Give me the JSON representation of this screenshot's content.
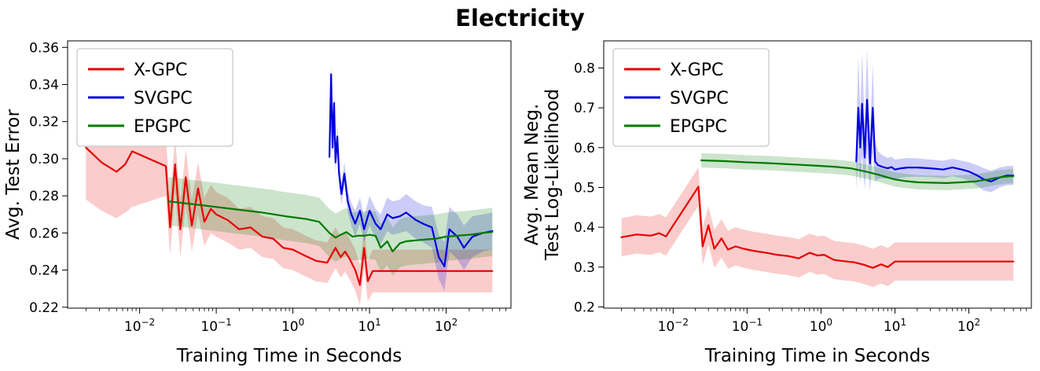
{
  "title": "Electricity",
  "chart_data": [
    {
      "type": "line",
      "xscale": "log",
      "xlabel": "Training Time in Seconds",
      "ylabel_lines": [
        "Avg. Test Error"
      ],
      "xlim": [
        0.00115,
        700
      ],
      "ylim": [
        0.2195,
        0.3635
      ],
      "xtick_exponents": [
        -2,
        -1,
        0,
        1,
        2
      ],
      "yticks": [
        0.22,
        0.24,
        0.26,
        0.28,
        0.3,
        0.32,
        0.34,
        0.36
      ],
      "ytick_labels": [
        "0.22",
        "0.24",
        "0.26",
        "0.28",
        "0.30",
        "0.32",
        "0.34",
        "0.36"
      ],
      "legend_position": "upper-left",
      "grid": false,
      "series": [
        {
          "name": "X-GPC",
          "color": "#e60000",
          "x": [
            0.002,
            0.0032,
            0.005,
            0.0065,
            0.008,
            0.022,
            0.025,
            0.029,
            0.034,
            0.04,
            0.048,
            0.058,
            0.07,
            0.085,
            0.1,
            0.14,
            0.2,
            0.28,
            0.4,
            0.55,
            0.75,
            1.0,
            1.4,
            2.0,
            2.8,
            3.6,
            4.2,
            4.8,
            5.5,
            6.5,
            7.5,
            8.5,
            9.5,
            11,
            13,
            400
          ],
          "y": [
            0.306,
            0.298,
            0.293,
            0.297,
            0.304,
            0.296,
            0.263,
            0.297,
            0.262,
            0.29,
            0.264,
            0.284,
            0.266,
            0.273,
            0.27,
            0.267,
            0.262,
            0.263,
            0.258,
            0.257,
            0.252,
            0.251,
            0.248,
            0.245,
            0.244,
            0.252,
            0.247,
            0.25,
            0.246,
            0.24,
            0.232,
            0.252,
            0.234,
            0.2395,
            0.2395,
            0.2395
          ],
          "band": [
            0.028,
            0.026,
            0.025,
            0.026,
            0.03,
            0.016,
            0.015,
            0.015,
            0.015,
            0.015,
            0.014,
            0.014,
            0.013,
            0.013,
            0.012,
            0.012,
            0.011,
            0.011,
            0.011,
            0.011,
            0.011,
            0.011,
            0.011,
            0.011,
            0.011,
            0.011,
            0.011,
            0.011,
            0.011,
            0.011,
            0.011,
            0.011,
            0.011,
            0.0115,
            0.0115,
            0.0115
          ]
        },
        {
          "name": "SVGPC",
          "color": "#0000dd",
          "x": [
            3.0,
            3.15,
            3.3,
            3.45,
            3.6,
            3.8,
            4.0,
            4.3,
            4.7,
            5.2,
            5.8,
            6.5,
            7.5,
            8.5,
            10,
            12,
            14,
            17,
            20,
            25,
            30,
            40,
            50,
            65,
            80,
            95,
            110,
            140,
            170,
            220,
            300,
            400
          ],
          "y": [
            0.301,
            0.3455,
            0.306,
            0.33,
            0.298,
            0.312,
            0.292,
            0.281,
            0.292,
            0.277,
            0.27,
            0.265,
            0.272,
            0.262,
            0.272,
            0.265,
            0.262,
            0.27,
            0.268,
            0.269,
            0.271,
            0.267,
            0.265,
            0.263,
            0.247,
            0.242,
            0.262,
            0.258,
            0.252,
            0.258,
            0.26,
            0.261
          ],
          "band": [
            0.006,
            0.006,
            0.006,
            0.006,
            0.006,
            0.006,
            0.006,
            0.006,
            0.006,
            0.006,
            0.006,
            0.007,
            0.007,
            0.007,
            0.008,
            0.008,
            0.008,
            0.009,
            0.009,
            0.009,
            0.01,
            0.01,
            0.01,
            0.011,
            0.012,
            0.013,
            0.012,
            0.012,
            0.012,
            0.011,
            0.01,
            0.01
          ]
        },
        {
          "name": "EPGPC",
          "color": "#007a00",
          "x": [
            0.024,
            0.05,
            0.1,
            0.2,
            0.4,
            0.8,
            1.5,
            2.2,
            3.0,
            3.6,
            4.2,
            5.0,
            6.0,
            7.0,
            8.5,
            10,
            12,
            14,
            17,
            20,
            25,
            30,
            40,
            55,
            75,
            100,
            140,
            200,
            300,
            400
          ],
          "y": [
            0.277,
            0.2755,
            0.274,
            0.2725,
            0.271,
            0.269,
            0.2675,
            0.266,
            0.26,
            0.2575,
            0.259,
            0.2605,
            0.258,
            0.2585,
            0.2585,
            0.259,
            0.2585,
            0.252,
            0.2555,
            0.25,
            0.2545,
            0.2555,
            0.256,
            0.2565,
            0.257,
            0.258,
            0.2585,
            0.259,
            0.26,
            0.2605
          ],
          "band": 0.013
        }
      ]
    },
    {
      "type": "line",
      "xscale": "log",
      "xlabel": "Training Time in Seconds",
      "ylabel_lines": [
        "Avg. Mean Neg.",
        "Test Log-Likelihood"
      ],
      "xlim": [
        0.00115,
        700
      ],
      "ylim": [
        0.197,
        0.868
      ],
      "xtick_exponents": [
        -2,
        -1,
        0,
        1,
        2
      ],
      "yticks": [
        0.2,
        0.3,
        0.4,
        0.5,
        0.6,
        0.7,
        0.8
      ],
      "ytick_labels": [
        "0.2",
        "0.3",
        "0.4",
        "0.5",
        "0.6",
        "0.7",
        "0.8"
      ],
      "legend_position": "upper-left",
      "grid": false,
      "series": [
        {
          "name": "X-GPC",
          "color": "#e60000",
          "x": [
            0.002,
            0.0032,
            0.005,
            0.0065,
            0.008,
            0.022,
            0.025,
            0.03,
            0.036,
            0.045,
            0.055,
            0.07,
            0.09,
            0.12,
            0.18,
            0.25,
            0.35,
            0.5,
            0.7,
            0.9,
            1.1,
            1.5,
            2.0,
            2.8,
            3.8,
            5.0,
            6.5,
            8.0,
            10,
            400
          ],
          "y": [
            0.375,
            0.382,
            0.379,
            0.385,
            0.377,
            0.502,
            0.352,
            0.405,
            0.346,
            0.372,
            0.344,
            0.352,
            0.346,
            0.341,
            0.336,
            0.331,
            0.328,
            0.322,
            0.336,
            0.329,
            0.331,
            0.318,
            0.315,
            0.312,
            0.306,
            0.298,
            0.307,
            0.3,
            0.314,
            0.314
          ],
          "band": 0.048
        },
        {
          "name": "SVGPC",
          "color": "#0000dd",
          "x": [
            3.0,
            3.2,
            3.4,
            3.6,
            3.9,
            4.2,
            4.6,
            5.0,
            5.4,
            5.9,
            6.5,
            7.2,
            8.0,
            9.0,
            10,
            12,
            15,
            20,
            30,
            45,
            60,
            80,
            100,
            130,
            160,
            200,
            260,
            330,
            400
          ],
          "y": [
            0.565,
            0.7,
            0.6,
            0.71,
            0.575,
            0.72,
            0.56,
            0.7,
            0.565,
            0.556,
            0.553,
            0.55,
            0.548,
            0.551,
            0.545,
            0.548,
            0.55,
            0.55,
            0.548,
            0.545,
            0.55,
            0.545,
            0.54,
            0.53,
            0.52,
            0.515,
            0.525,
            0.53,
            0.53
          ],
          "band": [
            0.07,
            0.13,
            0.09,
            0.13,
            0.08,
            0.13,
            0.07,
            0.11,
            0.05,
            0.035,
            0.03,
            0.028,
            0.026,
            0.026,
            0.025,
            0.024,
            0.024,
            0.023,
            0.022,
            0.022,
            0.022,
            0.022,
            0.023,
            0.026,
            0.028,
            0.027,
            0.025,
            0.024,
            0.024
          ]
        },
        {
          "name": "EPGPC",
          "color": "#007a00",
          "x": [
            0.024,
            0.05,
            0.1,
            0.2,
            0.4,
            0.8,
            1.5,
            2.5,
            4,
            6,
            8,
            10,
            14,
            20,
            30,
            50,
            80,
            120,
            180,
            250,
            350,
            400
          ],
          "y": [
            0.568,
            0.566,
            0.563,
            0.561,
            0.558,
            0.555,
            0.552,
            0.548,
            0.54,
            0.532,
            0.525,
            0.52,
            0.516,
            0.513,
            0.512,
            0.511,
            0.513,
            0.515,
            0.52,
            0.525,
            0.528,
            0.528
          ],
          "band": 0.018
        }
      ]
    }
  ],
  "style": {
    "band_opacity": 0.2,
    "axis_color": "#000000",
    "legend_border": "#c8c8c8",
    "legend_bg": "#ffffff"
  }
}
